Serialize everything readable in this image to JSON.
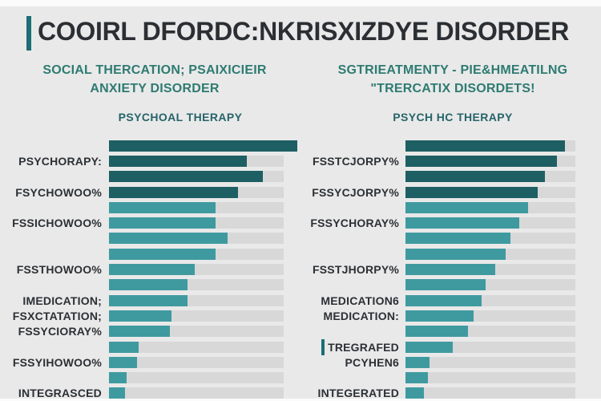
{
  "page": {
    "title": "COOIRL DFORDC:NKRISXIZDYE DISORDER"
  },
  "panels": [
    {
      "header_line1": "SOCIAL THERCATION; PSAIXICIEIR",
      "header_line2": "ANXIETY DISORDER",
      "subheader": "PSYCHOAL THERAPY"
    },
    {
      "header_line1": "SGTRIEATMENTY - PIE&HMEATILNG",
      "header_line2": "\"TRERCATIX DISORDETS!",
      "subheader": "PSYCH HC THERAPY"
    }
  ],
  "colors": {
    "bg": "#e9e9e9",
    "strip": "#fbfbfb",
    "track": "#d8d8d8",
    "dark": "#1e5f63",
    "medium": "#3f9aa0",
    "accent": "#1b6f75",
    "title": "#2b2f33",
    "header": "#2e7b72",
    "subheader": "#26646a",
    "text": "#2c3034"
  },
  "chart_data": [
    {
      "type": "bar",
      "orientation": "horizontal",
      "title": "SOCIAL THERCATION; PSAIXICIEIR ANXIETY DISORDER",
      "subtitle": "PSYCHOAL THERAPY",
      "unit": "percent of track length (estimated from pixels)",
      "xlim": [
        0,
        100
      ],
      "grid": false,
      "legend": "none",
      "categories": [
        "",
        "PSYCHORAPY:",
        "",
        "FSYCHOWOO%",
        "",
        "FSSICHOWOO%",
        "",
        "",
        "FSSTHOWOO%",
        "",
        "IMEDICATION;",
        "FSXCTATATION;",
        "FSSYCIORAY%",
        "",
        "FSSYIHOWOO%",
        "",
        "INTEGRASCED"
      ],
      "values": [
        108,
        79,
        88,
        74,
        61,
        61,
        68,
        61,
        49,
        45,
        45,
        36,
        35,
        17,
        16,
        10,
        9
      ],
      "bar_colors": [
        "dark",
        "dark",
        "dark",
        "dark",
        "medium",
        "medium",
        "medium",
        "medium",
        "medium",
        "medium",
        "medium",
        "medium",
        "medium",
        "medium",
        "medium",
        "medium",
        "medium"
      ],
      "ticks": [
        false,
        false,
        false,
        false,
        false,
        false,
        false,
        false,
        false,
        false,
        false,
        false,
        false,
        false,
        false,
        false,
        false
      ]
    },
    {
      "type": "bar",
      "orientation": "horizontal",
      "title": "SGTRIEATMENTY - PIE&HMEATILNG \"TRERCATIX DISORDETS!",
      "subtitle": "PSYCH HC THERAPY",
      "unit": "percent of track length (estimated from pixels)",
      "xlim": [
        0,
        100
      ],
      "grid": false,
      "legend": "none",
      "categories": [
        "",
        "FSSTCJORPY%",
        "",
        "FSSYCJORPY%",
        "",
        "FSSYCHORAY%",
        "",
        "",
        "FSSTJHORPY%",
        "",
        "MEDICATION6",
        "MEDICATION:",
        "",
        "TREGRAFED",
        "PCYHEN6",
        "",
        "INTEGERATED"
      ],
      "values": [
        94,
        89,
        82,
        78,
        72,
        67,
        62,
        59,
        53,
        47,
        45,
        40,
        37,
        28,
        14,
        13,
        11
      ],
      "bar_colors": [
        "dark",
        "dark",
        "dark",
        "dark",
        "medium",
        "medium",
        "medium",
        "medium",
        "medium",
        "medium",
        "medium",
        "medium",
        "medium",
        "medium",
        "medium",
        "medium",
        "medium"
      ],
      "ticks": [
        false,
        false,
        false,
        false,
        false,
        false,
        false,
        false,
        false,
        false,
        false,
        false,
        false,
        true,
        false,
        false,
        false
      ]
    }
  ]
}
